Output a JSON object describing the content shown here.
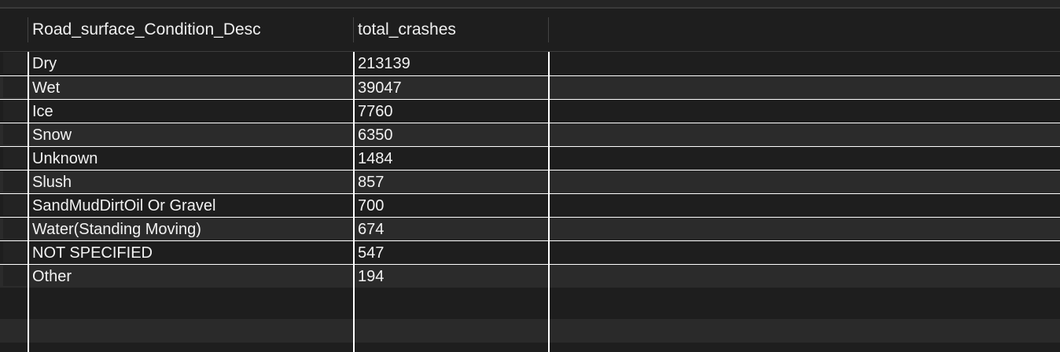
{
  "columns": [
    "Road_surface_Condition_Desc",
    "total_crashes"
  ],
  "rows": [
    {
      "condition": "Dry",
      "total": "213139"
    },
    {
      "condition": "Wet",
      "total": "39047"
    },
    {
      "condition": "Ice",
      "total": "7760"
    },
    {
      "condition": "Snow",
      "total": "6350"
    },
    {
      "condition": "Unknown",
      "total": "1484"
    },
    {
      "condition": "Slush",
      "total": "857"
    },
    {
      "condition": "SandMudDirtOil Or Gravel",
      "total": "700"
    },
    {
      "condition": "Water(Standing Moving)",
      "total": "674"
    },
    {
      "condition": "NOT SPECIFIED",
      "total": "547"
    },
    {
      "condition": "Other",
      "total": "194"
    }
  ]
}
